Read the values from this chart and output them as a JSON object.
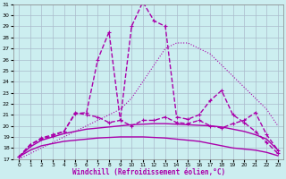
{
  "xlabel": "Windchill (Refroidissement éolien,°C)",
  "xlim": [
    -0.5,
    23.5
  ],
  "ylim": [
    17,
    31
  ],
  "yticks": [
    17,
    18,
    19,
    20,
    21,
    22,
    23,
    24,
    25,
    26,
    27,
    28,
    29,
    30,
    31
  ],
  "xticks": [
    0,
    1,
    2,
    3,
    4,
    5,
    6,
    7,
    8,
    9,
    10,
    11,
    12,
    13,
    14,
    15,
    16,
    17,
    18,
    19,
    20,
    21,
    22,
    23
  ],
  "bg_color": "#cceef0",
  "line_color": "#aa00aa",
  "grid_color": "#aabbcc",
  "series": [
    {
      "x": [
        0,
        1,
        2,
        3,
        4,
        5,
        6,
        7,
        8,
        9,
        10,
        11,
        12,
        13,
        14,
        15,
        16,
        17,
        18,
        19,
        20,
        21,
        22,
        23
      ],
      "y": [
        17.0,
        17.5,
        18.0,
        18.5,
        19.0,
        19.5,
        20.0,
        20.5,
        21.0,
        21.5,
        22.5,
        24.0,
        25.5,
        27.0,
        27.5,
        27.5,
        27.0,
        26.5,
        25.5,
        24.5,
        23.5,
        22.5,
        21.5,
        20.0
      ],
      "marker": null,
      "linestyle": "dotted",
      "linewidth": 0.8
    },
    {
      "x": [
        0,
        1,
        2,
        3,
        4,
        5,
        6,
        7,
        8,
        9,
        10,
        11,
        12,
        13,
        14,
        15,
        16,
        17,
        18,
        19,
        20,
        21,
        22,
        23
      ],
      "y": [
        17.2,
        18.3,
        18.8,
        19.1,
        19.5,
        21.2,
        21.0,
        20.8,
        20.3,
        20.5,
        29.0,
        31.2,
        29.5,
        29.0,
        20.8,
        20.6,
        21.0,
        22.3,
        23.2,
        21.0,
        20.3,
        19.5,
        18.5,
        17.5
      ],
      "marker": "+",
      "linestyle": "--",
      "linewidth": 1.0
    },
    {
      "x": [
        0,
        1,
        2,
        3,
        4,
        5,
        6,
        7,
        8,
        9,
        10,
        11,
        12,
        13,
        14,
        15,
        16,
        17,
        18,
        19,
        20,
        21,
        22,
        23
      ],
      "y": [
        17.2,
        18.3,
        18.9,
        19.2,
        19.5,
        21.1,
        21.2,
        26.0,
        28.5,
        20.5,
        20.0,
        20.5,
        20.5,
        20.8,
        20.3,
        20.2,
        20.5,
        20.0,
        19.8,
        20.2,
        20.5,
        21.2,
        19.2,
        17.8
      ],
      "marker": "+",
      "linestyle": "--",
      "linewidth": 1.0
    },
    {
      "x": [
        0,
        1,
        2,
        3,
        4,
        5,
        6,
        7,
        8,
        9,
        10,
        11,
        12,
        13,
        14,
        15,
        16,
        17,
        18,
        19,
        20,
        21,
        22,
        23
      ],
      "y": [
        17.2,
        18.1,
        18.7,
        19.0,
        19.3,
        19.5,
        19.7,
        19.8,
        19.9,
        20.0,
        20.1,
        20.15,
        20.2,
        20.2,
        20.15,
        20.1,
        20.05,
        20.0,
        19.9,
        19.7,
        19.5,
        19.2,
        18.8,
        17.8
      ],
      "marker": null,
      "linestyle": "-",
      "linewidth": 1.0
    },
    {
      "x": [
        0,
        1,
        2,
        3,
        4,
        5,
        6,
        7,
        8,
        9,
        10,
        11,
        12,
        13,
        14,
        15,
        16,
        17,
        18,
        19,
        20,
        21,
        22,
        23
      ],
      "y": [
        17.2,
        17.8,
        18.2,
        18.4,
        18.6,
        18.7,
        18.8,
        18.9,
        18.95,
        19.0,
        19.0,
        19.0,
        18.95,
        18.9,
        18.8,
        18.7,
        18.6,
        18.4,
        18.2,
        18.0,
        17.9,
        17.8,
        17.6,
        17.3
      ],
      "marker": null,
      "linestyle": "-",
      "linewidth": 1.0
    }
  ]
}
